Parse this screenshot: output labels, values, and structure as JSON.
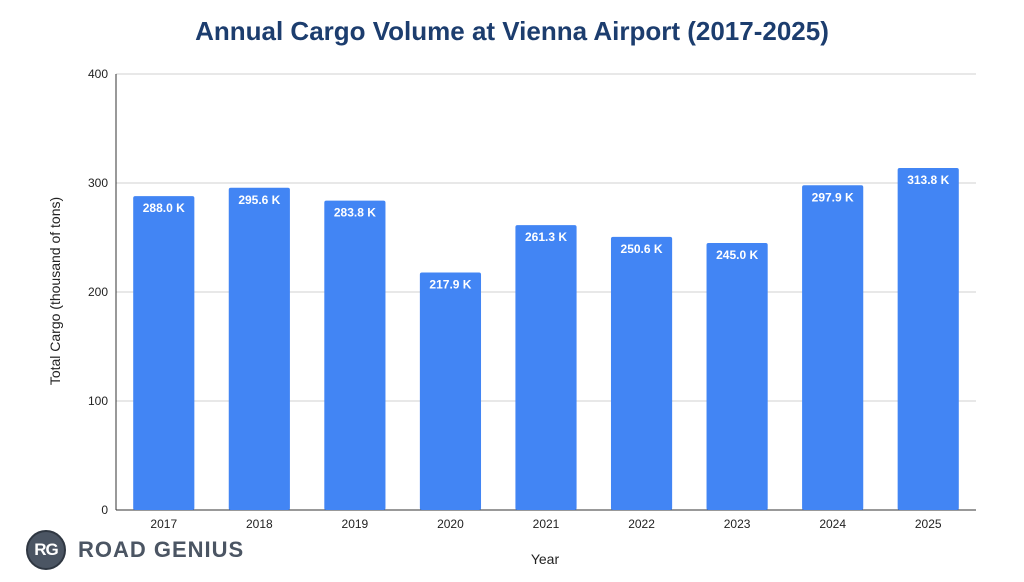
{
  "chart_data": {
    "type": "bar",
    "title": "Annual Cargo Volume at Vienna Airport (2017-2025)",
    "xlabel": "Year",
    "ylabel": "Total Cargo (thousand of tons)",
    "categories": [
      "2017",
      "2018",
      "2019",
      "2020",
      "2021",
      "2022",
      "2023",
      "2024",
      "2025"
    ],
    "values": [
      288.0,
      295.6,
      283.8,
      217.9,
      261.3,
      250.6,
      245.0,
      297.9,
      313.8
    ],
    "data_labels": [
      "288.0 K",
      "295.6 K",
      "283.8 K",
      "217.9 K",
      "261.3 K",
      "250.6 K",
      "245.0 K",
      "297.9 K",
      "313.8 K"
    ],
    "ylim": [
      0,
      400
    ],
    "yticks": [
      "0",
      "100",
      "200",
      "300",
      "400"
    ],
    "grid": true,
    "legend": "none",
    "bar_color": "#4285f4"
  },
  "logo": {
    "badge": "RG",
    "text": "ROAD GENIUS"
  }
}
